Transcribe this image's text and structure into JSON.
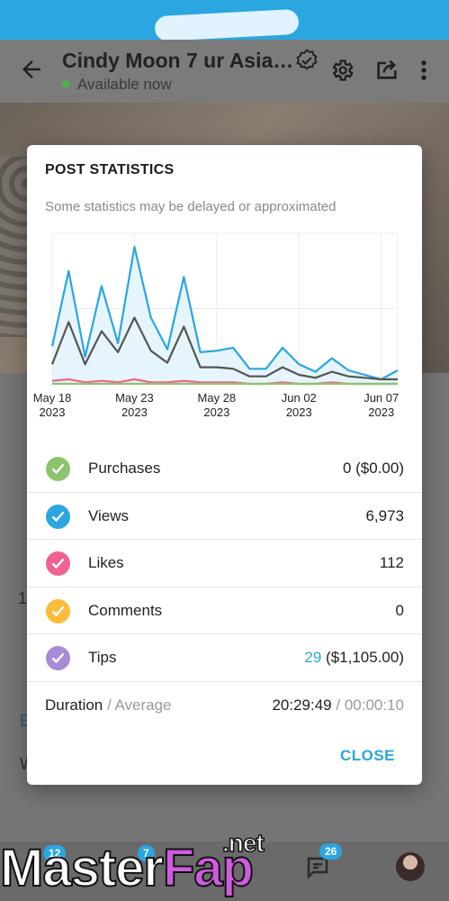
{
  "appbar": {
    "title": "Cindy Moon 7 ur Asia…",
    "status": "Available now"
  },
  "background_peek": {
    "line1": "1",
    "line2": "E",
    "line3": "W"
  },
  "bottomnav": {
    "badge_home": "12",
    "badge_second": "7",
    "badge_messages": "26"
  },
  "watermark": {
    "master": "Master",
    "fap": "Fap",
    "net": ".net"
  },
  "modal": {
    "heading": "POST STATISTICS",
    "note": "Some statistics may be delayed or approximated",
    "close_label": "CLOSE",
    "duration_label": "Duration",
    "average_label": "Average",
    "duration_value": "20:29:49",
    "average_value": "00:00:10",
    "stats": [
      {
        "label": "Purchases",
        "value": "0 ($0.00)",
        "color": "#8cc46b"
      },
      {
        "label": "Views",
        "value": "6,973",
        "color": "#2aa6e0"
      },
      {
        "label": "Likes",
        "value": "112",
        "color": "#f06292"
      },
      {
        "label": "Comments",
        "value": "0",
        "color": "#fbbc3a"
      },
      {
        "label": "Tips",
        "value_highlight": "29",
        "value_rest": "($1,105.00)",
        "color": "#a88ad6"
      }
    ]
  },
  "chart_data": {
    "type": "line",
    "x_tick_labels": [
      {
        "day": "May 18",
        "year": "2023"
      },
      {
        "day": "May 23",
        "year": "2023"
      },
      {
        "day": "May 28",
        "year": "2023"
      },
      {
        "day": "Jun 02",
        "year": "2023"
      },
      {
        "day": "Jun 07",
        "year": "2023"
      }
    ],
    "x_start": "2023-05-18",
    "x_end": "2023-06-08",
    "grid": true,
    "ylim": [
      0,
      100
    ],
    "series": [
      {
        "color": "#2aa6e0",
        "fill": "#e6f4fb",
        "x": [
          "2023-05-18",
          "2023-05-19",
          "2023-05-20",
          "2023-05-21",
          "2023-05-22",
          "2023-05-23",
          "2023-05-24",
          "2023-05-25",
          "2023-05-26",
          "2023-05-27",
          "2023-05-28",
          "2023-05-29",
          "2023-05-30",
          "2023-05-31",
          "2023-06-01",
          "2023-06-02",
          "2023-06-03",
          "2023-06-04",
          "2023-06-05",
          "2023-06-06",
          "2023-06-07",
          "2023-06-08"
        ],
        "values": [
          25,
          75,
          18,
          65,
          27,
          91,
          44,
          23,
          71,
          21,
          22,
          24,
          10,
          10,
          24,
          13,
          8,
          17,
          9,
          6,
          3,
          9
        ]
      },
      {
        "color": "#555555",
        "fill": "none",
        "x": [
          "2023-05-18",
          "2023-05-19",
          "2023-05-20",
          "2023-05-21",
          "2023-05-22",
          "2023-05-23",
          "2023-05-24",
          "2023-05-25",
          "2023-05-26",
          "2023-05-27",
          "2023-05-28",
          "2023-05-29",
          "2023-05-30",
          "2023-05-31",
          "2023-06-01",
          "2023-06-02",
          "2023-06-03",
          "2023-06-04",
          "2023-06-05",
          "2023-06-06",
          "2023-06-07",
          "2023-06-08"
        ],
        "values": [
          13,
          41,
          13,
          35,
          21,
          44,
          22,
          14,
          38,
          11,
          11,
          10,
          5,
          5,
          11,
          6,
          4,
          8,
          5,
          4,
          3,
          3
        ]
      },
      {
        "color": "#f06292",
        "fill": "none",
        "x": [
          "2023-05-18",
          "2023-05-19",
          "2023-05-20",
          "2023-05-21",
          "2023-05-22",
          "2023-05-23",
          "2023-05-24",
          "2023-05-25",
          "2023-05-26",
          "2023-05-27",
          "2023-05-28",
          "2023-05-29",
          "2023-05-30",
          "2023-05-31",
          "2023-06-01",
          "2023-06-02",
          "2023-06-03",
          "2023-06-04",
          "2023-06-05",
          "2023-06-06",
          "2023-06-07",
          "2023-06-08"
        ],
        "values": [
          2,
          3,
          1,
          2,
          1,
          3,
          1,
          1,
          2,
          1,
          1,
          1,
          0,
          0,
          1,
          0,
          0,
          1,
          0,
          0,
          0,
          0
        ]
      },
      {
        "color": "#8cc46b",
        "fill": "none",
        "x": [
          "2023-05-18",
          "2023-06-08"
        ],
        "values": [
          0,
          0
        ]
      }
    ]
  }
}
